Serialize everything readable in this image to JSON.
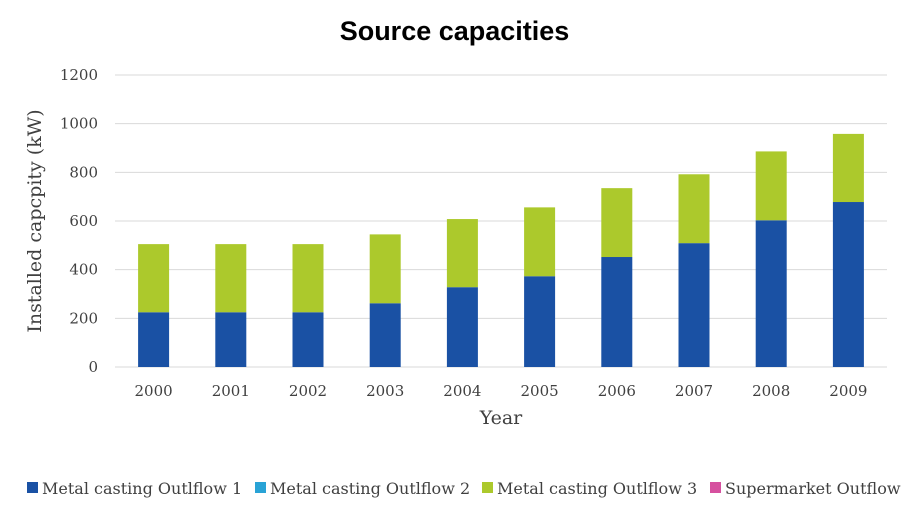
{
  "chart_data": {
    "type": "bar",
    "stacked": true,
    "title": "Source capacities",
    "xlabel": "Year",
    "ylabel": "Installed capcpity (kW)",
    "ylim": [
      0,
      1200
    ],
    "yticks": [
      "0",
      "200",
      "400",
      "600",
      "800",
      "1000",
      "1200"
    ],
    "grid": true,
    "legend_position": "bottom",
    "categories": [
      "2000",
      "2001",
      "2002",
      "2003",
      "2004",
      "2005",
      "2006",
      "2007",
      "2008",
      "2009"
    ],
    "series": [
      {
        "name": "Metal casting Outlflow 1",
        "color": "#1a51a4",
        "values": [
          225,
          225,
          225,
          262,
          328,
          373,
          452,
          509,
          603,
          678
        ]
      },
      {
        "name": "Metal casting Outlflow 2",
        "color": "#29a3d6",
        "values": [
          0,
          0,
          0,
          0,
          0,
          0,
          0,
          0,
          0,
          0
        ]
      },
      {
        "name": "Metal casting Outlflow 3",
        "color": "#acc92c",
        "values": [
          280,
          280,
          280,
          283,
          280,
          283,
          283,
          283,
          283,
          280
        ]
      },
      {
        "name": "Supermarket Outflow",
        "color": "#d6509f",
        "values": [
          0,
          0,
          0,
          0,
          0,
          0,
          0,
          0,
          0,
          0
        ]
      }
    ]
  }
}
